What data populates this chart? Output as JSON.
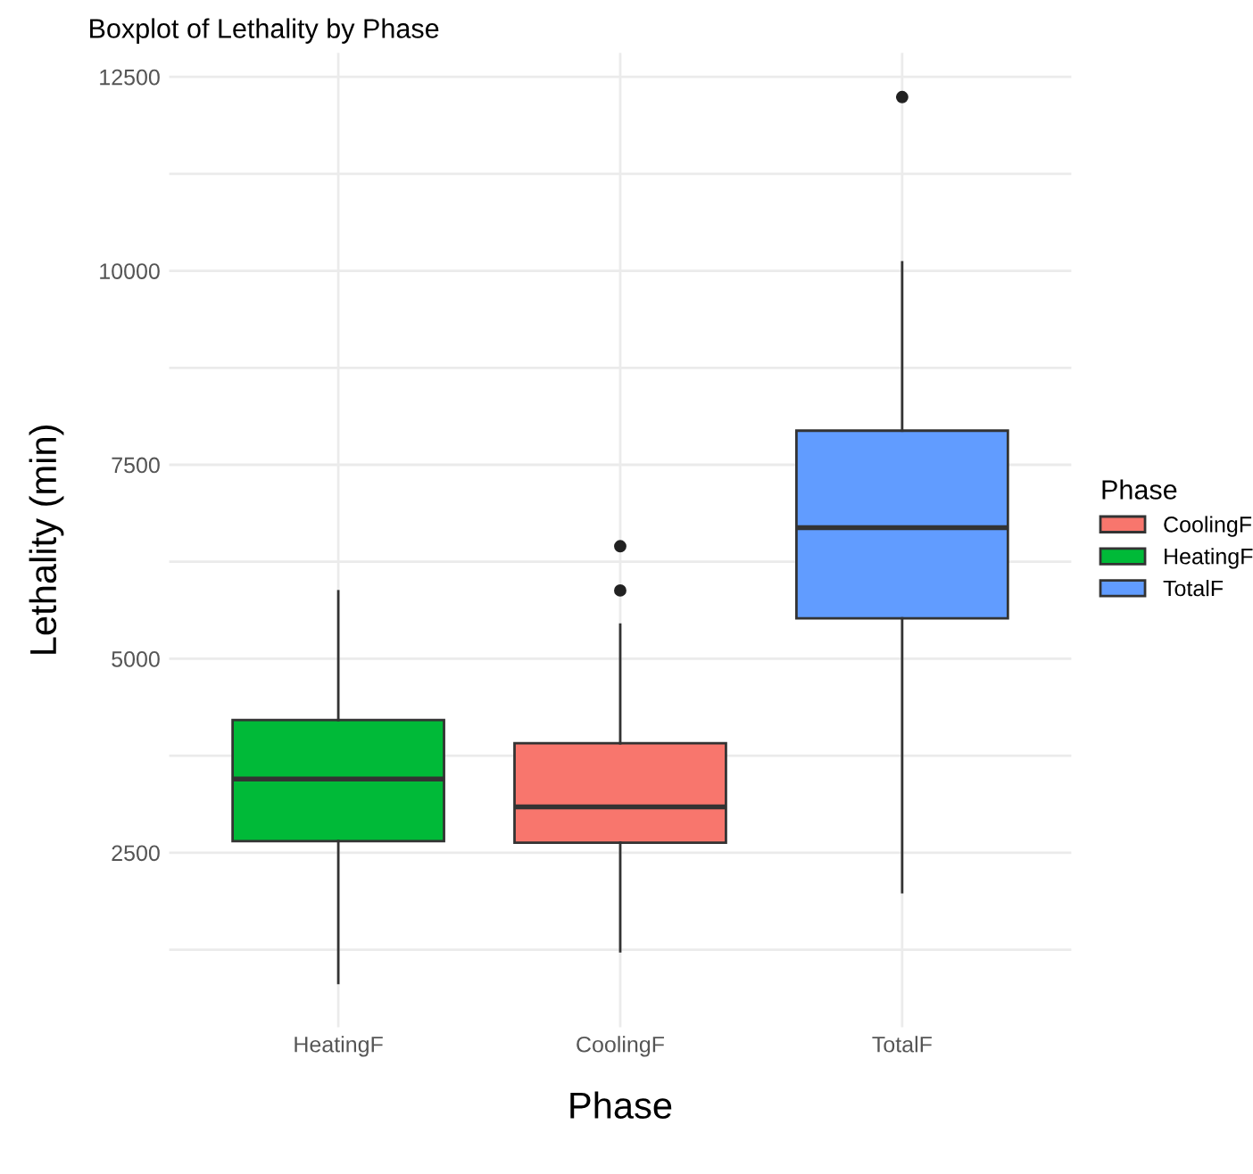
{
  "chart_data": {
    "type": "box",
    "title": "Boxplot of Lethality by Phase",
    "xlabel": "Phase",
    "ylabel": "Lethality (min)",
    "legend_title": "Phase",
    "categories": [
      "HeatingF",
      "CoolingF",
      "TotalF"
    ],
    "series": [
      {
        "name": "CoolingF",
        "color": "#f8766d",
        "boxes": [
          null,
          {
            "low": 1230,
            "q1": 2630,
            "median": 3090,
            "q3": 3910,
            "high": 5440,
            "outliers": [
              5880,
              6450
            ]
          },
          null
        ]
      },
      {
        "name": "HeatingF",
        "color": "#00ba38",
        "boxes": [
          {
            "low": 820,
            "q1": 2650,
            "median": 3450,
            "q3": 4210,
            "high": 5870
          },
          null,
          null
        ]
      },
      {
        "name": "TotalF",
        "color": "#619cff",
        "boxes": [
          null,
          null,
          {
            "low": 1990,
            "q1": 5520,
            "median": 6690,
            "q3": 7940,
            "high": 10110,
            "outliers": [
              12240
            ]
          }
        ]
      }
    ],
    "ylim": [
      250,
      12810
    ],
    "yticks": [
      {
        "value": 1250,
        "label": null
      },
      2500,
      {
        "value": 3750,
        "label": null
      },
      5000,
      {
        "value": 6250,
        "label": null
      },
      7500,
      {
        "value": 8750,
        "label": null
      },
      10000,
      {
        "value": 11250,
        "label": null
      },
      12500
    ],
    "grid": true,
    "legend": "right"
  }
}
